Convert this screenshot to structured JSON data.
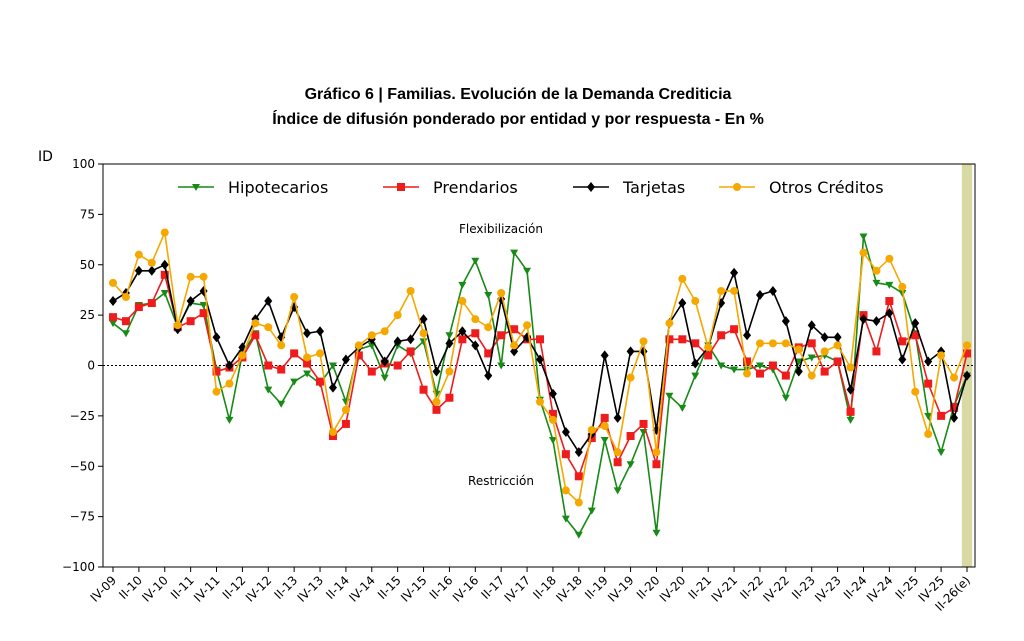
{
  "chart_data": {
    "type": "line",
    "title": "Gráfico 6 | Familias. Evolución de la Demanda Crediticia",
    "subtitle": "Índice de difusión ponderado por entidad y por respuesta - En %",
    "y_label": "ID",
    "annotations": [
      "Flexibilización",
      "Restricción"
    ],
    "categories": [
      "IV-09",
      null,
      "II-10",
      null,
      "IV-10",
      null,
      "II-11",
      null,
      "IV-11",
      null,
      "II-12",
      null,
      "IV-12",
      null,
      "II-13",
      null,
      "IV-13",
      null,
      "II-14",
      null,
      "IV-14",
      null,
      "II-15",
      null,
      "IV-15",
      null,
      "II-16",
      null,
      "IV-16",
      null,
      "II-17",
      null,
      "IV-17",
      null,
      "II-18",
      null,
      "IV-18",
      null,
      "II-19",
      null,
      "IV-19",
      null,
      "II-20",
      null,
      "IV-20",
      null,
      "II-21",
      null,
      "IV-21",
      null,
      "II-22",
      null,
      "IV-22",
      null,
      "II-23",
      null,
      "IV-23",
      null,
      "II-24",
      null,
      "IV-24",
      null,
      "II-25",
      null,
      "IV-25",
      null,
      "II-26(e)"
    ],
    "series": [
      {
        "name": "Hipotecarios",
        "color": "#178a17",
        "marker": "triangle-down",
        "values": [
          21,
          16,
          30,
          31,
          36,
          19,
          31,
          30,
          -2,
          -27,
          6,
          16,
          -12,
          -19,
          -8,
          -4,
          -9,
          0,
          -18,
          8,
          10,
          -6,
          10,
          6,
          12,
          -14,
          15,
          40,
          52,
          35,
          0,
          56,
          47,
          -17,
          -37,
          -76,
          -84,
          -72,
          -37,
          -62,
          -49,
          -33,
          -83,
          -15,
          -21,
          -5,
          10,
          0,
          -2,
          -2,
          0,
          -2,
          -16,
          2,
          4,
          5,
          2,
          -27,
          64,
          41,
          40,
          36,
          16,
          -25,
          -43,
          -20,
          -5
        ]
      },
      {
        "name": "Prendarios",
        "color": "#ee1c1c",
        "marker": "square",
        "values": [
          24,
          22,
          29,
          31,
          45,
          19,
          22,
          26,
          -3,
          -1,
          4,
          15,
          0,
          -2,
          6,
          1,
          -8,
          -35,
          -29,
          5,
          -3,
          1,
          0,
          7,
          -12,
          -22,
          -16,
          13,
          16,
          6,
          15,
          18,
          13,
          13,
          -24,
          -44,
          -55,
          -36,
          -26,
          -48,
          -35,
          -29,
          -49,
          13,
          13,
          11,
          5,
          15,
          18,
          2,
          -4,
          0,
          -5,
          9,
          11,
          -3,
          2,
          -23,
          25,
          7,
          32,
          12,
          15,
          -9,
          -25,
          -21,
          6
        ]
      },
      {
        "name": "Tarjetas",
        "color": "#000000",
        "marker": "diamond",
        "values": [
          32,
          36,
          47,
          47,
          50,
          18,
          32,
          37,
          14,
          0,
          9,
          23,
          32,
          14,
          29,
          16,
          17,
          -11,
          3,
          9,
          13,
          2,
          12,
          13,
          23,
          -3,
          11,
          17,
          10,
          -5,
          33,
          7,
          14,
          3,
          -14,
          -33,
          -43,
          -34,
          5,
          -26,
          7,
          7,
          -32,
          21,
          31,
          1,
          9,
          31,
          46,
          15,
          35,
          37,
          22,
          -3,
          20,
          14,
          14,
          -12,
          23,
          22,
          26,
          3,
          21,
          2,
          7,
          -26,
          -5
        ]
      },
      {
        "name": "Otros Créditos",
        "color": "#f5a800",
        "marker": "circle",
        "values": [
          41,
          34,
          55,
          51,
          66,
          20,
          44,
          44,
          -13,
          -9,
          5,
          21,
          19,
          10,
          34,
          4,
          6,
          -33,
          -22,
          10,
          15,
          17,
          25,
          37,
          16,
          -18,
          -3,
          32,
          23,
          19,
          36,
          10,
          20,
          -18,
          -27,
          -62,
          -68,
          -32,
          -30,
          -43,
          -6,
          12,
          -43,
          21,
          43,
          32,
          9,
          37,
          37,
          -4,
          11,
          11,
          11,
          8,
          -5,
          7,
          10,
          -1,
          56,
          47,
          53,
          39,
          -13,
          -34,
          5,
          -6,
          10
        ]
      }
    ],
    "ylim": [
      -100,
      100
    ],
    "yticks": [
      {
        "value": -100,
        "label": "−100"
      },
      {
        "value": -75,
        "label": "−75"
      },
      {
        "value": -50,
        "label": "−50"
      },
      {
        "value": -25,
        "label": "−25"
      },
      0,
      25,
      50,
      75,
      100
    ],
    "zero_line": true,
    "highlight_index": 66,
    "legend": "top"
  }
}
